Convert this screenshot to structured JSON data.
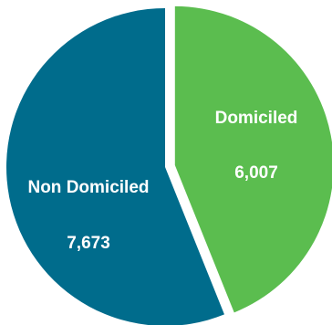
{
  "chart_data": {
    "type": "pie",
    "categories": [
      "Domiciled",
      "Non Domiciled"
    ],
    "values": [
      6007,
      7673
    ],
    "value_labels": [
      "6,007",
      "7,673"
    ],
    "colors": [
      "#5BBD4F",
      "#006C8C"
    ],
    "exploded": [
      "Domiciled"
    ],
    "title": "",
    "legend": "none"
  }
}
